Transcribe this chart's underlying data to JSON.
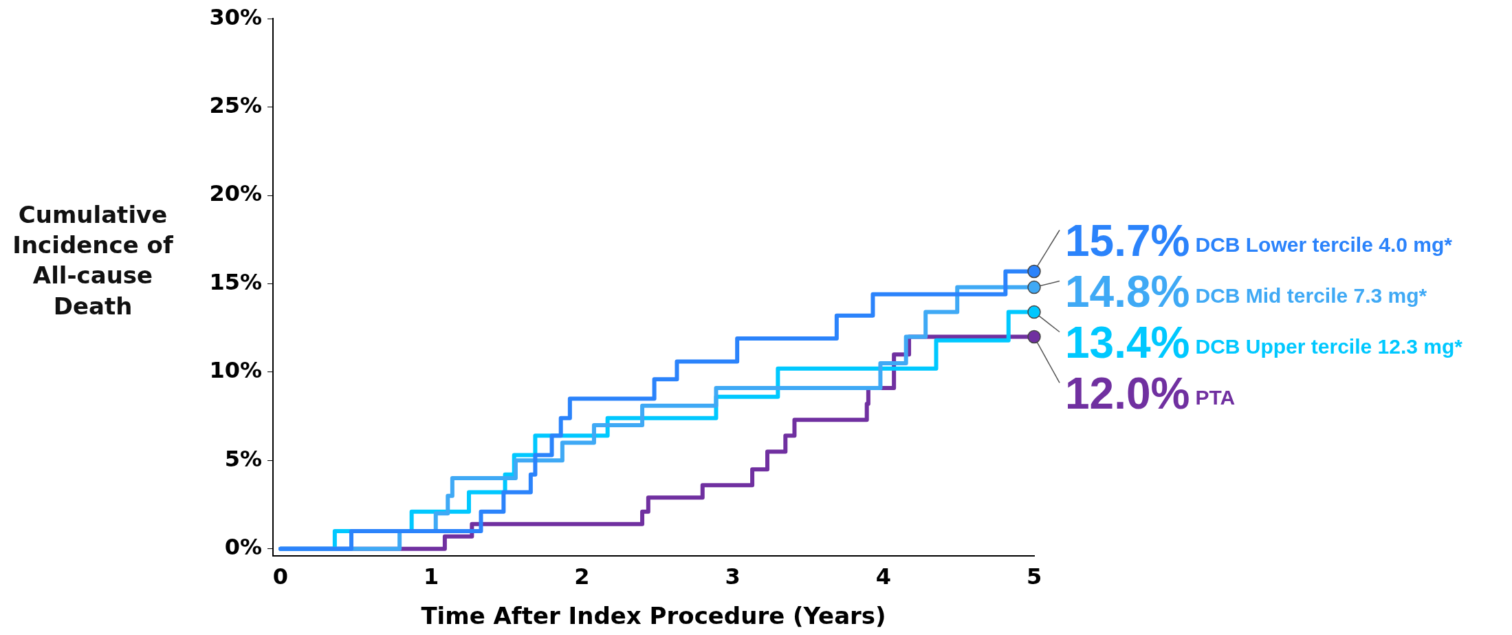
{
  "chart_data": {
    "type": "step",
    "xlabel": "Time After Index Procedure (Years)",
    "ylabel": "Cumulative Incidence of All-cause Death",
    "xlim": [
      -0.05,
      5
    ],
    "xticks": [
      0,
      1,
      2,
      3,
      4,
      5
    ],
    "ylim": [
      -0.4,
      30
    ],
    "yticks": [
      {
        "value": 0,
        "label": "0%"
      },
      {
        "value": 5,
        "label": "5%"
      },
      {
        "value": 10,
        "label": "10%"
      },
      {
        "value": 15,
        "label": "15%"
      },
      {
        "value": 20,
        "label": "20%"
      },
      {
        "value": 25,
        "label": "25%"
      },
      {
        "value": 30,
        "label": "30%"
      }
    ],
    "grid": false,
    "legend": false,
    "marker": "none",
    "line_style": "solid",
    "series": [
      {
        "name": "DCB Lower tercile 4.0 mg*",
        "color": "#2b83fb",
        "x": [
          0,
          0.47,
          1.33,
          1.48,
          1.66,
          1.69,
          1.8,
          1.86,
          1.92,
          2.48,
          2.63,
          3.03,
          3.69,
          3.93,
          4.81,
          5
        ],
        "values": [
          0,
          1.0,
          2.1,
          3.2,
          4.2,
          5.3,
          6.4,
          7.4,
          8.5,
          9.6,
          10.6,
          11.9,
          13.2,
          14.4,
          15.7,
          15.7
        ]
      },
      {
        "name": "DCB Mid tercile 7.3 mg*",
        "color": "#3fa9f5",
        "x": [
          0,
          0.79,
          1.03,
          1.11,
          1.14,
          1.56,
          1.87,
          2.08,
          2.4,
          2.89,
          3.98,
          4.15,
          4.28,
          4.49,
          5
        ],
        "values": [
          0,
          1.0,
          2.0,
          3.0,
          4.0,
          5.0,
          6.0,
          7.0,
          8.1,
          9.1,
          10.5,
          12.0,
          13.4,
          14.8,
          14.8
        ]
      },
      {
        "name": "DCB Upper tercile 12.3 mg*",
        "color": "#00c8ff",
        "x": [
          0,
          0.36,
          0.87,
          1.25,
          1.49,
          1.55,
          1.69,
          2.17,
          2.89,
          3.3,
          4.35,
          4.83,
          5
        ],
        "values": [
          0,
          1.0,
          2.1,
          3.2,
          4.2,
          5.3,
          6.4,
          7.4,
          8.6,
          10.2,
          11.8,
          13.4,
          13.4
        ]
      },
      {
        "name": "PTA",
        "color": "#7030a0",
        "x": [
          0,
          1.09,
          1.27,
          2.4,
          2.44,
          2.8,
          3.13,
          3.23,
          3.35,
          3.41,
          3.89,
          3.9,
          4.07,
          4.17,
          5
        ],
        "values": [
          0,
          0.7,
          1.4,
          2.1,
          2.9,
          3.6,
          4.5,
          5.5,
          6.4,
          7.3,
          8.2,
          9.1,
          11.0,
          12.0,
          12.0
        ]
      }
    ],
    "annotations": [
      "15.7%",
      "14.8%",
      "13.4%",
      "12.0%"
    ]
  }
}
